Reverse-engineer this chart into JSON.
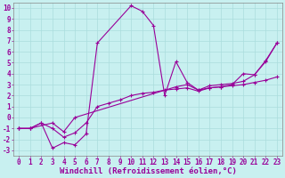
{
  "xlabel": "Windchill (Refroidissement éolien,°C)",
  "ylabel": "",
  "bg_color": "#c8f0f0",
  "grid_color": "#aadddd",
  "line_color": "#990099",
  "marker": "+",
  "xlim": [
    -0.5,
    23.5
  ],
  "ylim": [
    -3.5,
    10.5
  ],
  "xticks": [
    0,
    1,
    2,
    3,
    4,
    5,
    6,
    7,
    8,
    9,
    10,
    11,
    12,
    13,
    14,
    15,
    16,
    17,
    18,
    19,
    20,
    21,
    22,
    23
  ],
  "yticks": [
    -3,
    -2,
    -1,
    0,
    1,
    2,
    3,
    4,
    5,
    6,
    7,
    8,
    9,
    10
  ],
  "line1_x": [
    0,
    1,
    2,
    3,
    4,
    5,
    6,
    7,
    10,
    11,
    12,
    13,
    14,
    15,
    16,
    17,
    18,
    19,
    20,
    21,
    22,
    23
  ],
  "line1_y": [
    -1,
    -1,
    -0.5,
    -2.8,
    -2.3,
    -2.5,
    -1.5,
    6.8,
    10.2,
    9.7,
    8.4,
    2.0,
    5.1,
    3.2,
    2.5,
    2.7,
    2.8,
    3.0,
    4.0,
    3.9,
    5.2,
    6.8
  ],
  "line2_x": [
    0,
    1,
    2,
    3,
    4,
    5,
    6,
    7,
    8,
    9,
    10,
    11,
    12,
    13,
    14,
    15,
    16,
    17,
    18,
    19,
    20,
    21,
    22,
    23
  ],
  "line2_y": [
    -1,
    -1,
    -0.5,
    -1.0,
    -1.8,
    -1.4,
    -0.5,
    1.0,
    1.3,
    1.6,
    2.0,
    2.2,
    2.3,
    2.5,
    2.6,
    2.7,
    2.4,
    2.7,
    2.8,
    2.9,
    3.0,
    3.2,
    3.4,
    3.7
  ],
  "line3_x": [
    0,
    1,
    3,
    4,
    5,
    14,
    15,
    16,
    17,
    18,
    19,
    20,
    21,
    22,
    23
  ],
  "line3_y": [
    -1,
    -1,
    -0.5,
    -1.3,
    0.0,
    2.8,
    3.0,
    2.5,
    2.9,
    3.0,
    3.1,
    3.3,
    3.9,
    5.1,
    6.8
  ],
  "font_family": "monospace",
  "tick_fontsize": 5.5,
  "label_fontsize": 6.5
}
